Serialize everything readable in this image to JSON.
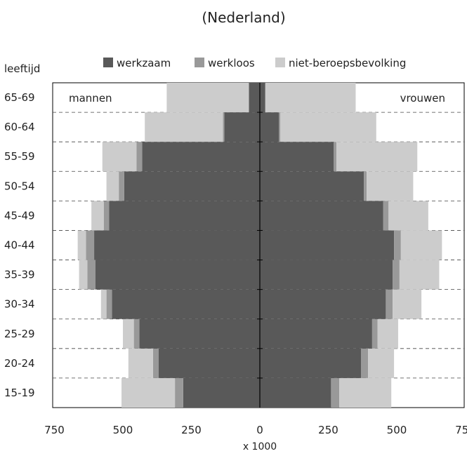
{
  "chart_data": {
    "type": "bar",
    "orientation": "horizontal-diverging",
    "title": "(Nederland)",
    "ylabel": "leeftijd",
    "xlabel": "x 1000",
    "left_group": "mannen",
    "right_group": "vrouwen",
    "categories": [
      "15-19",
      "20-24",
      "25-29",
      "30-34",
      "35-39",
      "40-44",
      "45-49",
      "50-54",
      "55-59",
      "60-64",
      "65-69"
    ],
    "x_ticks": [
      "750",
      "500",
      "250",
      "0",
      "250",
      "500",
      "750"
    ],
    "xlim": [
      -750,
      750
    ],
    "legend_position": "top",
    "grid": "horizontal dashed",
    "series": [
      {
        "name": "werkzaam",
        "color": "#595959",
        "men": [
          280,
          370,
          440,
          540,
          600,
          605,
          550,
          495,
          430,
          130,
          40
        ],
        "women": [
          260,
          370,
          410,
          460,
          485,
          490,
          450,
          380,
          270,
          70,
          20
        ]
      },
      {
        "name": "werkloos",
        "color": "#999999",
        "men": [
          30,
          20,
          20,
          20,
          30,
          30,
          20,
          20,
          20,
          5,
          0
        ],
        "women": [
          30,
          25,
          20,
          25,
          25,
          25,
          20,
          10,
          10,
          5,
          0
        ]
      },
      {
        "name": "niet-beroepsbevolking",
        "color": "#cccccc",
        "men": [
          195,
          90,
          40,
          20,
          30,
          30,
          45,
          45,
          125,
          285,
          300
        ],
        "women": [
          190,
          95,
          75,
          105,
          145,
          150,
          145,
          170,
          295,
          350,
          330
        ]
      }
    ]
  }
}
